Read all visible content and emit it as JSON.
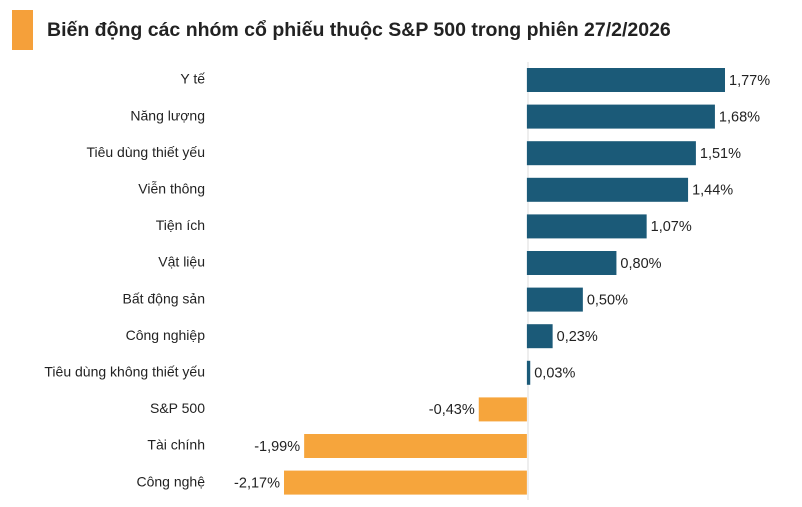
{
  "chart_data": {
    "type": "bar",
    "orientation": "horizontal",
    "title": "Biến động các nhóm cổ phiếu thuộc S&P 500 trong phiên 27/2/2026",
    "categories": [
      "Y tế",
      "Năng lượng",
      "Tiêu dùng thiết yếu",
      "Viễn thông",
      "Tiện ích",
      "Vật liệu",
      "Bất động sản",
      "Công nghiệp",
      "Tiêu dùng không thiết yếu",
      "S&P 500",
      "Tài chính",
      "Công nghệ"
    ],
    "values": [
      1.77,
      1.68,
      1.51,
      1.44,
      1.07,
      0.8,
      0.5,
      0.23,
      0.03,
      -0.43,
      -1.99,
      -2.17
    ],
    "value_labels": [
      "1,77%",
      "1,68%",
      "1,51%",
      "1,44%",
      "1,07%",
      "0,80%",
      "0,50%",
      "0,23%",
      "0,03%",
      "-0,43%",
      "-1,99%",
      "-2,17%"
    ],
    "colors": {
      "positive": "#1b5a78",
      "negative": "#f6a53c"
    }
  }
}
